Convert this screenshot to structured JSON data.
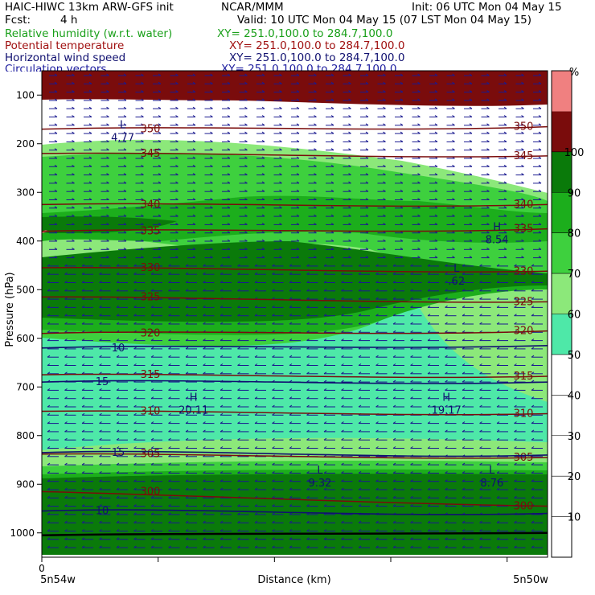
{
  "header": {
    "model": "HAIC-HIWC 13km ARW-GFS init",
    "org": "NCAR/MMM",
    "init": "Init: 06 UTC Mon 04 May 15",
    "fcst_label": "Fcst:",
    "fcst_value": "4 h",
    "valid": "Valid: 10 UTC Mon 04 May 15 (07 LST Mon 04 May 15)"
  },
  "fields": [
    {
      "name": "Relative humidity (w.r.t. water)",
      "xy": "XY= 251.0,100.0 to 284.7,100.0",
      "color": "#1aa01a"
    },
    {
      "name": "Potential temperature",
      "xy": "XY= 251.0,100.0 to 284.7,100.0",
      "color": "#a01010"
    },
    {
      "name": "Horizontal wind speed",
      "xy": "XY= 251.0,100.0 to 284.7,100.0",
      "color": "#101070"
    },
    {
      "name": "Circulation vectors",
      "xy": "XY= 251.0,100.0 to 284.7,100.0",
      "color": "#2020a0"
    }
  ],
  "chart_data": {
    "type": "cross-section",
    "xlabel": "Distance (km)",
    "ylabel": "Pressure (hPa)",
    "x_start_label": "5n54w",
    "x_end_label": "5n50w",
    "x_zero_label": "0",
    "y_ticks": [
      100,
      200,
      300,
      400,
      500,
      600,
      700,
      800,
      900,
      1000
    ],
    "ylim": [
      1050,
      50
    ],
    "colorbar": {
      "unit": "%",
      "levels": [
        10,
        20,
        30,
        40,
        50,
        60,
        70,
        80,
        90,
        100
      ],
      "bands": [
        {
          "from": 0,
          "to": 50,
          "color": "#ffffff"
        },
        {
          "from": 50,
          "to": 60,
          "color": "#4ee8a8"
        },
        {
          "from": 60,
          "to": 70,
          "color": "#8ce87a"
        },
        {
          "from": 70,
          "to": 80,
          "color": "#3ed03e"
        },
        {
          "from": 80,
          "to": 90,
          "color": "#1cae1c"
        },
        {
          "from": 90,
          "to": 100,
          "color": "#0a7a0a"
        },
        {
          "from": 100,
          "to": 110,
          "color": "#7a0c0c"
        },
        {
          "from": 110,
          "to": 120,
          "color": "#f08080"
        }
      ]
    },
    "theta_contours": [
      {
        "value": 300,
        "p_left": 915,
        "p_right": 945,
        "labels": [
          "300",
          "300"
        ]
      },
      {
        "value": 305,
        "p_left": 838,
        "p_right": 845,
        "labels": [
          "305",
          "305"
        ]
      },
      {
        "value": 310,
        "p_left": 750,
        "p_right": 755,
        "labels": [
          "310",
          "310"
        ]
      },
      {
        "value": 315,
        "p_left": 675,
        "p_right": 678,
        "labels": [
          "315",
          "315"
        ]
      },
      {
        "value": 320,
        "p_left": 590,
        "p_right": 585,
        "labels": [
          "320",
          "320"
        ]
      },
      {
        "value": 325,
        "p_left": 515,
        "p_right": 525,
        "labels": [
          "325",
          "325"
        ]
      },
      {
        "value": 330,
        "p_left": 455,
        "p_right": 462,
        "labels": [
          "330",
          "330"
        ]
      },
      {
        "value": 335,
        "p_left": 380,
        "p_right": 375,
        "labels": [
          "335",
          "335"
        ]
      },
      {
        "value": 340,
        "p_left": 325,
        "p_right": 325,
        "labels": [
          "340",
          "340"
        ]
      },
      {
        "value": 345,
        "p_left": 220,
        "p_right": 225,
        "labels": [
          "345",
          "345"
        ]
      },
      {
        "value": 350,
        "p_left": 170,
        "p_right": 165,
        "labels": [
          "350",
          "350"
        ]
      }
    ],
    "wind_contours": [
      {
        "value": 10,
        "p_left": 955,
        "p_right": 960,
        "label": "10"
      },
      {
        "value": 15,
        "p_left": 835,
        "p_right": 840,
        "label": "15"
      },
      {
        "value": 15,
        "p_left": 690,
        "p_right": 690,
        "label": "15"
      },
      {
        "value": 10,
        "p_left": 620,
        "p_right": 615,
        "label": "10"
      }
    ],
    "extrema": [
      {
        "type": "H",
        "value": "20.11",
        "x_frac": 0.3,
        "p": 735
      },
      {
        "type": "H",
        "value": "19.17",
        "x_frac": 0.8,
        "p": 735
      },
      {
        "type": "H",
        "value": "8.54",
        "x_frac": 0.9,
        "p": 385
      },
      {
        "type": "L",
        "value": "9.32",
        "x_frac": 0.55,
        "p": 885
      },
      {
        "type": "L",
        "value": "8.76",
        "x_frac": 0.89,
        "p": 885
      },
      {
        "type": "L",
        "value": ".62",
        "x_frac": 0.82,
        "p": 470
      },
      {
        "type": "L",
        "value": "4.77",
        "x_frac": 0.16,
        "p": 175
      }
    ]
  }
}
